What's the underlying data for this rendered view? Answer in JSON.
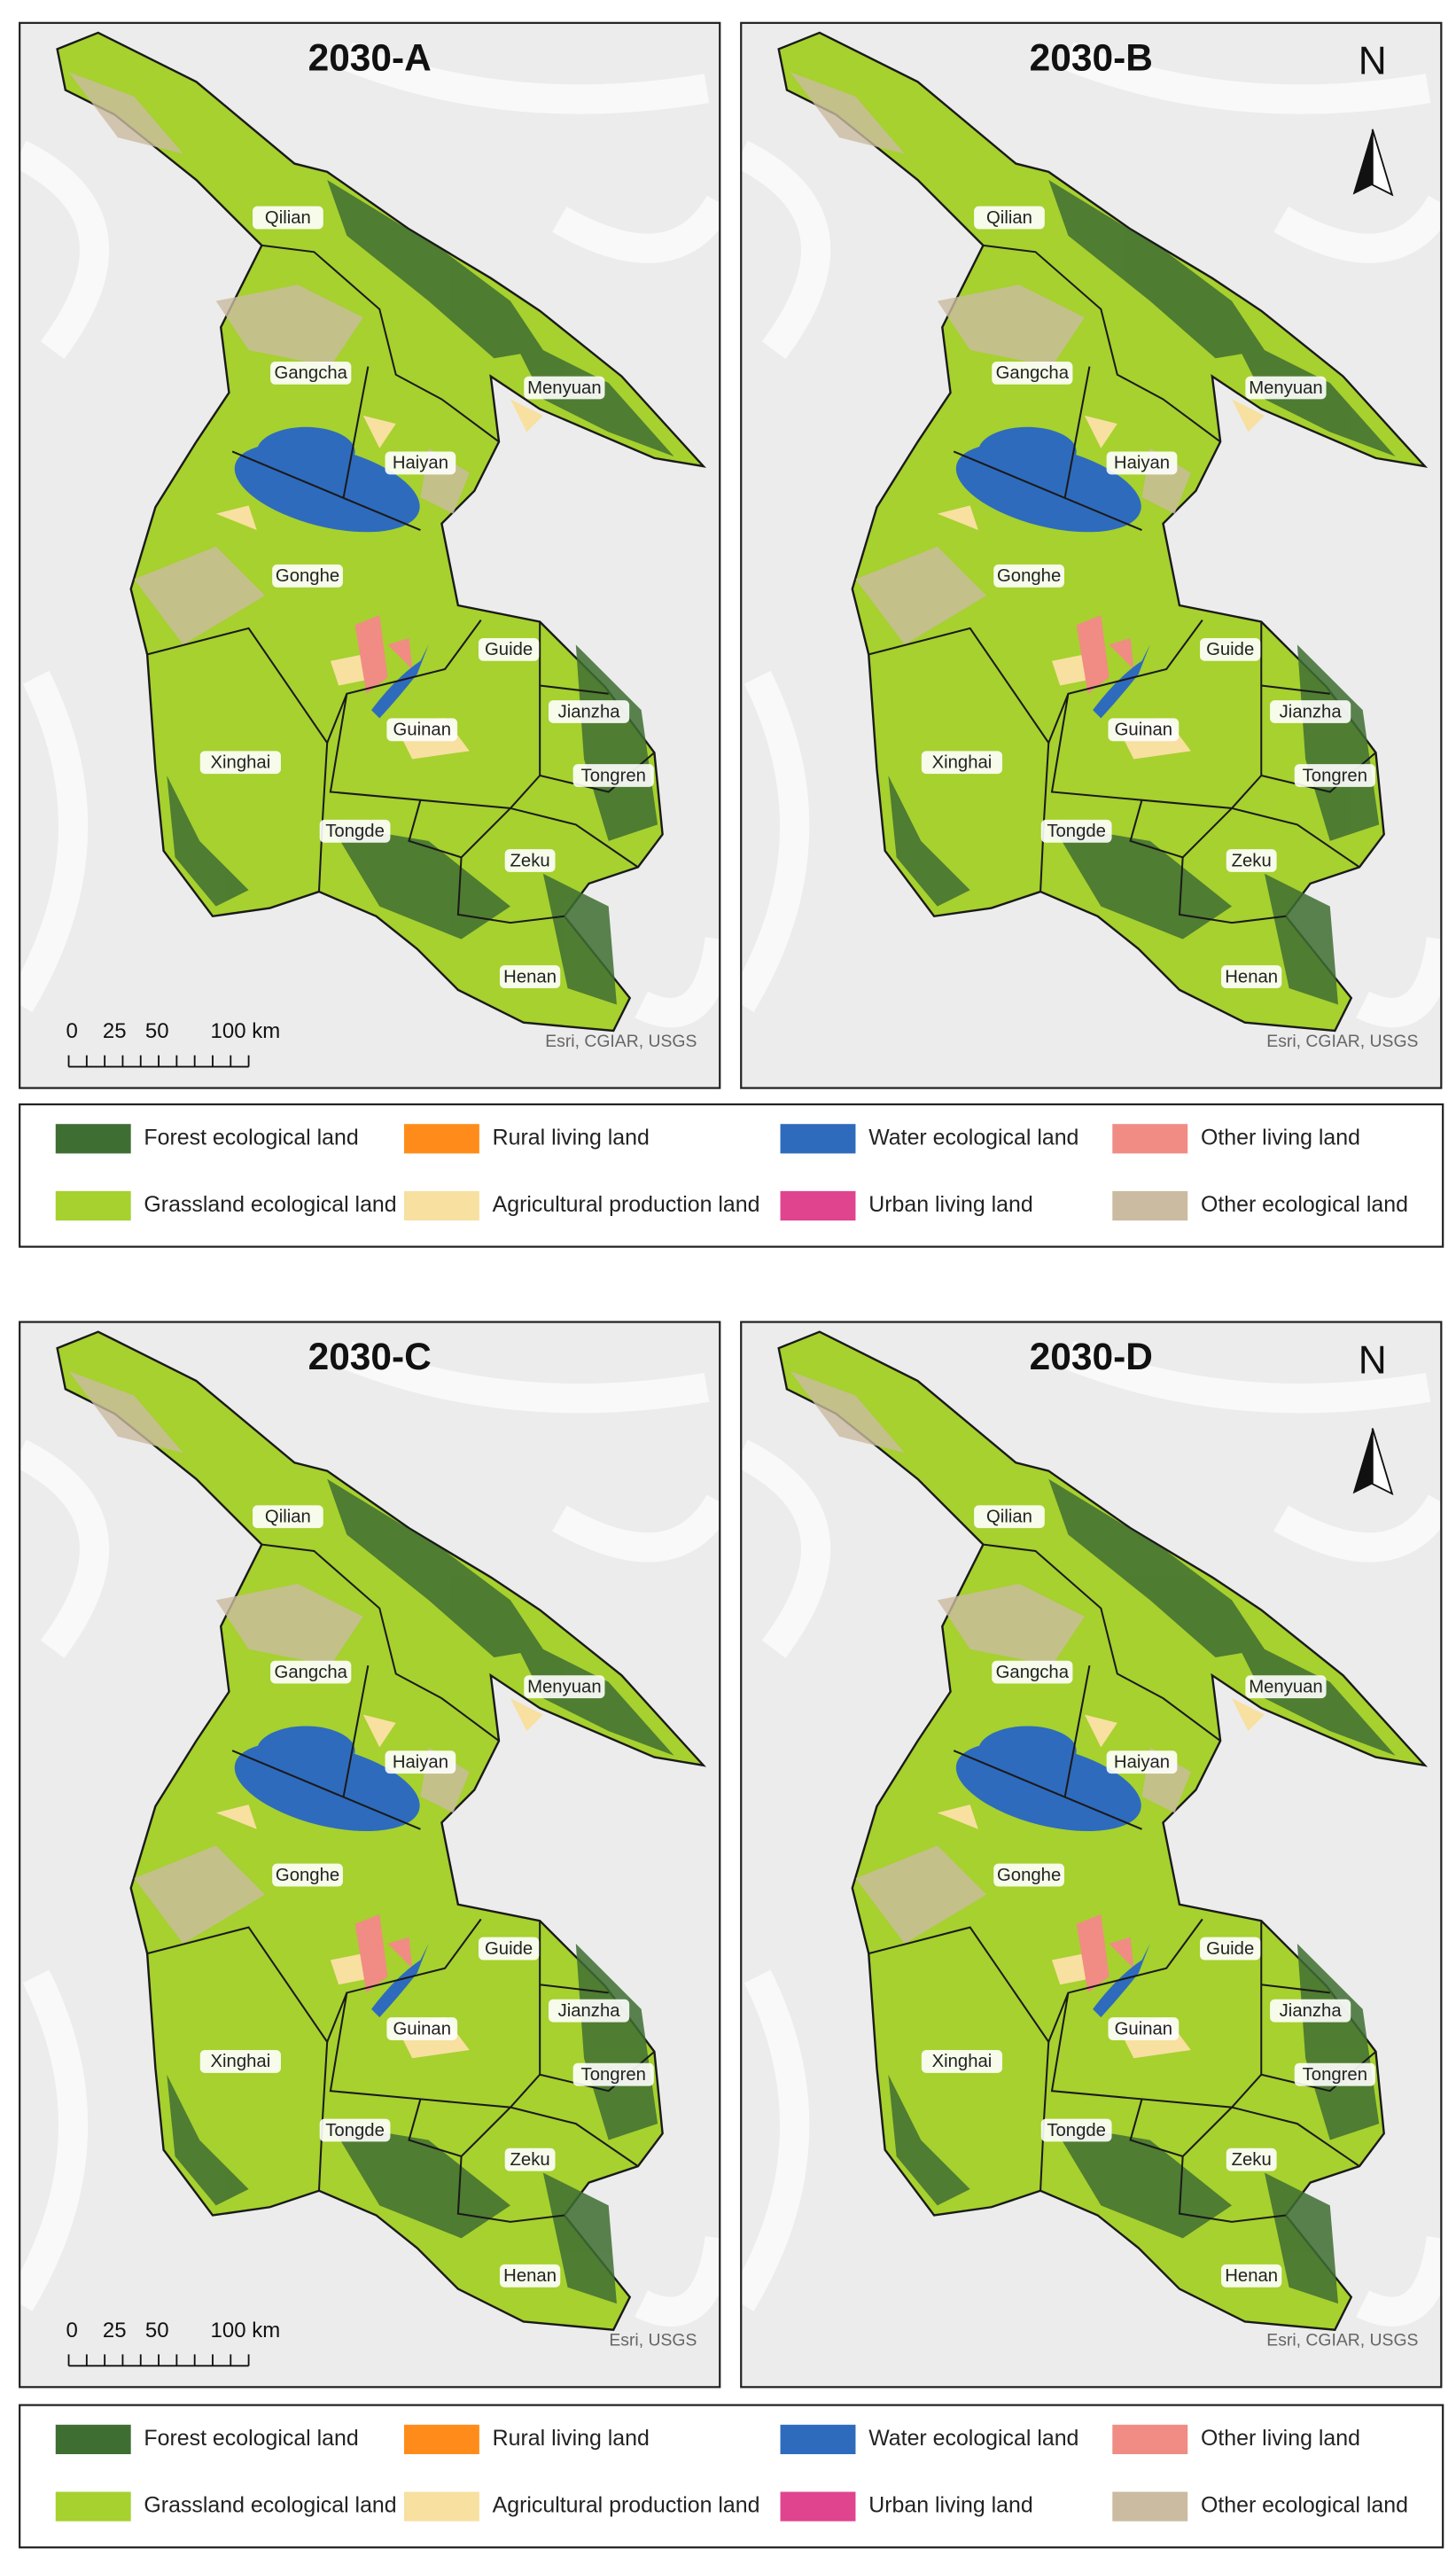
{
  "panels": [
    {
      "title": "2030-A",
      "counties": [
        "Qilian",
        "Menyuan",
        "Gangcha",
        "Haiyan",
        "Gonghe",
        "Guide",
        "Jianzha",
        "Guinan",
        "Xinghai",
        "Tongren",
        "Tongde",
        "Zeku",
        "Henan"
      ],
      "scale_bar": [
        "0",
        "25",
        "50",
        "100 km"
      ],
      "attribution": "Esri, CGIAR, USGS"
    },
    {
      "title": "2030-B",
      "north_arrow": "N",
      "counties": [
        "Qilian",
        "Menyuan",
        "Gangcha",
        "Haiyan",
        "Gonghe",
        "Guide",
        "Jianzha",
        "Guinan",
        "Xinghai",
        "Tongren",
        "Tongde",
        "Zeku",
        "Henan"
      ],
      "attribution": "Esri, CGIAR, USGS"
    },
    {
      "title": "2030-C",
      "counties": [
        "Qilian",
        "Menyuan",
        "Gangcha",
        "Haiyan",
        "Gonghe",
        "Guide",
        "Jianzha",
        "Guinan",
        "Xinghai",
        "Tongren",
        "Tongde",
        "Zeku",
        "Henan"
      ],
      "scale_bar": [
        "0",
        "25",
        "50",
        "100 km"
      ],
      "attribution": "Esri, USGS"
    },
    {
      "title": "2030-D",
      "north_arrow": "N",
      "counties": [
        "Qilian",
        "Menyuan",
        "Gangcha",
        "Haiyan",
        "Gonghe",
        "Guide",
        "Jianzha",
        "Guinan",
        "Xinghai",
        "Tongren",
        "Tongde",
        "Zeku",
        "Henan"
      ],
      "attribution": "Esri, CGIAR, USGS"
    }
  ],
  "legends": [
    {
      "items": [
        {
          "label": "Forest ecological land",
          "color": "#3f6e32"
        },
        {
          "label": "Rural living land",
          "color": "#ff8c1a"
        },
        {
          "label": "Water ecological land",
          "color": "#2e6bbd"
        },
        {
          "label": "Other living land",
          "color": "#f08c84"
        },
        {
          "label": "Grassland ecological land",
          "color": "#a6d12e"
        },
        {
          "label": "Agricultural production land",
          "color": "#f7e0a0"
        },
        {
          "label": "Urban living land",
          "color": "#e0448f"
        },
        {
          "label": "Other ecological land",
          "color": "#cbbba0"
        }
      ]
    },
    {
      "items": [
        {
          "label": "Forest ecological land",
          "color": "#3f6e32"
        },
        {
          "label": "Rural living land",
          "color": "#ff8c1a"
        },
        {
          "label": "Water ecological land",
          "color": "#2e6bbd"
        },
        {
          "label": "Other living land",
          "color": "#f08c84"
        },
        {
          "label": "Grassland ecological land",
          "color": "#a6d12e"
        },
        {
          "label": "Agricultural production land",
          "color": "#f7e0a0"
        },
        {
          "label": "Urban living land",
          "color": "#e0448f"
        },
        {
          "label": "Other ecological land",
          "color": "#cbbba0"
        }
      ]
    }
  ]
}
